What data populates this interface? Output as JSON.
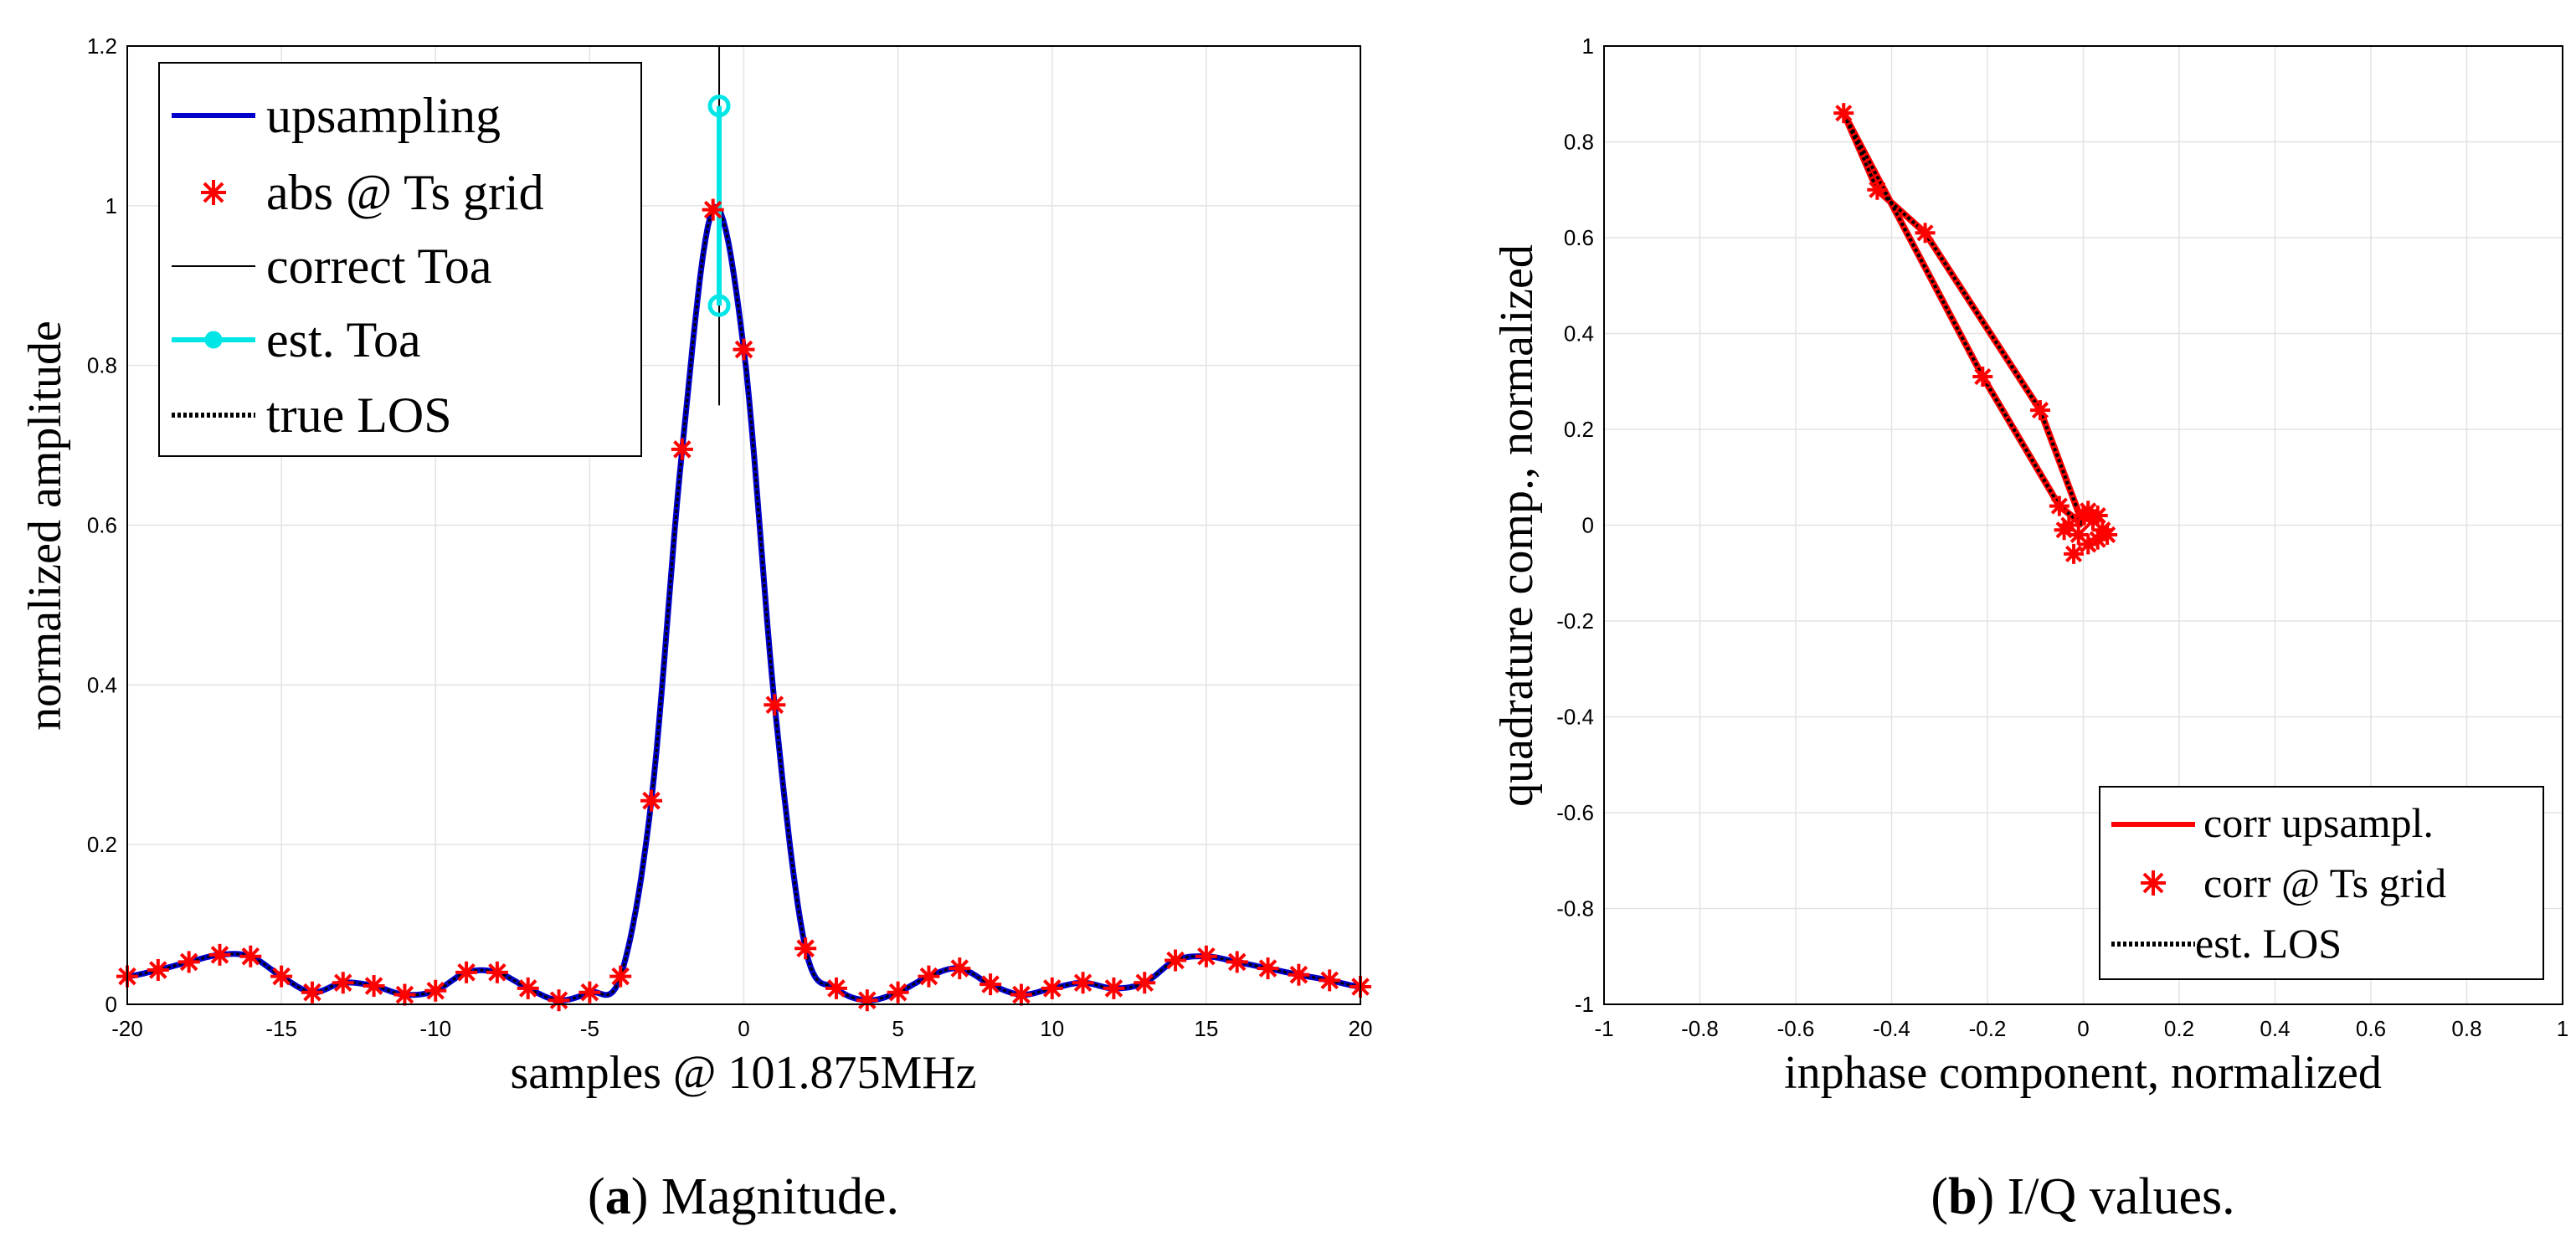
{
  "chart_data": [
    {
      "type": "line",
      "caption_label": "a",
      "caption_text": " Magnitude.",
      "xlabel": "samples @ 101.875MHz",
      "ylabel": "normalized amplitude",
      "xlim": [
        -20,
        20
      ],
      "ylim": [
        0,
        1.2
      ],
      "xticks": [
        -20,
        -15,
        -10,
        -5,
        0,
        5,
        10,
        15,
        20
      ],
      "yticks": [
        0,
        0.2,
        0.4,
        0.6,
        0.8,
        1,
        1.2
      ],
      "grid": true,
      "legend_position": "top-left",
      "legend": [
        {
          "label": "upsampling",
          "style": "line",
          "color": "#0000cc"
        },
        {
          "label": "abs @ Ts grid",
          "style": "star",
          "color": "#ff0000"
        },
        {
          "label": "correct Toa",
          "style": "thin-line",
          "color": "#000000"
        },
        {
          "label": "est. Toa",
          "style": "line-circle",
          "color": "#00e5e5"
        },
        {
          "label": "true LOS",
          "style": "dotted",
          "color": "#000000"
        }
      ],
      "grid_samples": {
        "x": [
          -20,
          -19,
          -18,
          -17,
          -16,
          -15,
          -14,
          -13,
          -12,
          -11,
          -10,
          -9,
          -8,
          -7,
          -6,
          -5,
          -4,
          -3,
          -2,
          -1,
          0,
          1,
          2,
          3,
          4,
          5,
          6,
          7,
          8,
          9,
          10,
          11,
          12,
          13,
          14,
          15,
          16,
          17,
          18,
          19,
          20
        ],
        "y": [
          0.035,
          0.043,
          0.053,
          0.062,
          0.06,
          0.035,
          0.015,
          0.027,
          0.023,
          0.012,
          0.017,
          0.04,
          0.04,
          0.02,
          0.005,
          0.015,
          0.035,
          0.255,
          0.695,
          0.995,
          0.82,
          0.375,
          0.07,
          0.02,
          0.005,
          0.015,
          0.035,
          0.045,
          0.025,
          0.012,
          0.02,
          0.027,
          0.02,
          0.027,
          0.055,
          0.06,
          0.053,
          0.045,
          0.037,
          0.03,
          0.022
        ]
      },
      "correct_toa": {
        "x": -0.8,
        "y_range": [
          0.75,
          1.2
        ]
      },
      "est_toa": {
        "x": -0.8,
        "y_values": [
          0.875,
          1.125
        ]
      }
    },
    {
      "type": "scatter",
      "caption_label": "b",
      "caption_text": " I/Q values.",
      "xlabel": "inphase component, normalized",
      "ylabel": "quadrature comp., normalized",
      "xlim": [
        -1,
        1
      ],
      "ylim": [
        -1,
        1
      ],
      "xticks": [
        -1,
        -0.8,
        -0.6,
        -0.4,
        -0.2,
        0,
        0.2,
        0.4,
        0.6,
        0.8,
        1
      ],
      "yticks": [
        -1,
        -0.8,
        -0.6,
        -0.4,
        -0.2,
        0,
        0.2,
        0.4,
        0.6,
        0.8,
        1
      ],
      "grid": true,
      "legend_position": "bottom-right",
      "legend": [
        {
          "label": "corr upsampl.",
          "style": "line",
          "color": "#ff0000"
        },
        {
          "label": "corr @ Ts grid",
          "style": "star",
          "color": "#ff0000"
        },
        {
          "label": "est. LOS",
          "style": "dotted",
          "color": "#000000"
        }
      ],
      "loop_points": [
        [
          0.0,
          0.0
        ],
        [
          -0.05,
          0.04
        ],
        [
          -0.21,
          0.31
        ],
        [
          -0.5,
          0.86
        ],
        [
          -0.43,
          0.7
        ],
        [
          -0.33,
          0.61
        ],
        [
          -0.09,
          0.24
        ],
        [
          0.0,
          0.0
        ]
      ],
      "grid_points": [
        [
          -0.5,
          0.86
        ],
        [
          -0.43,
          0.7
        ],
        [
          -0.33,
          0.61
        ],
        [
          -0.21,
          0.31
        ],
        [
          -0.09,
          0.24
        ],
        [
          -0.05,
          0.04
        ],
        [
          0.0,
          0.02
        ],
        [
          0.02,
          0.01
        ],
        [
          0.04,
          -0.01
        ],
        [
          0.03,
          -0.03
        ],
        [
          0.01,
          -0.04
        ],
        [
          -0.01,
          -0.02
        ],
        [
          -0.03,
          0.0
        ],
        [
          -0.02,
          -0.06
        ],
        [
          0.05,
          -0.02
        ],
        [
          0.01,
          0.03
        ],
        [
          -0.04,
          -0.01
        ],
        [
          0.03,
          0.02
        ]
      ]
    }
  ]
}
